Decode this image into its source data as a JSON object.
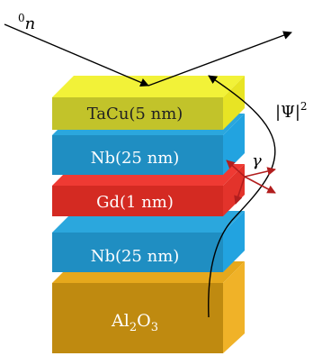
{
  "neutron": {
    "symbol": "n",
    "superscript": "0"
  },
  "psi": {
    "label": "|Ψ|",
    "power": "2"
  },
  "gamma": {
    "label": "γ"
  },
  "layers": {
    "tacu": {
      "label": "TaCu(5 nm)",
      "front": "#c2c32a",
      "top": "#f2f238",
      "side": "#e8e424"
    },
    "nb_top": {
      "label": "Nb(25 nm)",
      "front": "#1f8ec2",
      "top": "#2ba7dd",
      "side": "#22a3e0"
    },
    "gd": {
      "label": "Gd(1 nm)",
      "front": "#d42a22",
      "top": "#ef3a33",
      "side": "#e3332b"
    },
    "nb_bottom": {
      "label": "Nb(25 nm)",
      "front": "#1f8ec2",
      "top": "#2ba7dd",
      "side": "#22a3e0"
    },
    "substrate": {
      "label_main": "Al",
      "label_sub1": "2",
      "label_mid": "O",
      "label_sub2": "3",
      "front": "#bf8a10",
      "top": "#e6a81c",
      "side": "#f0b228"
    }
  },
  "colors": {
    "arrow": "#000000",
    "gamma_arrow": "#b21e1e"
  }
}
